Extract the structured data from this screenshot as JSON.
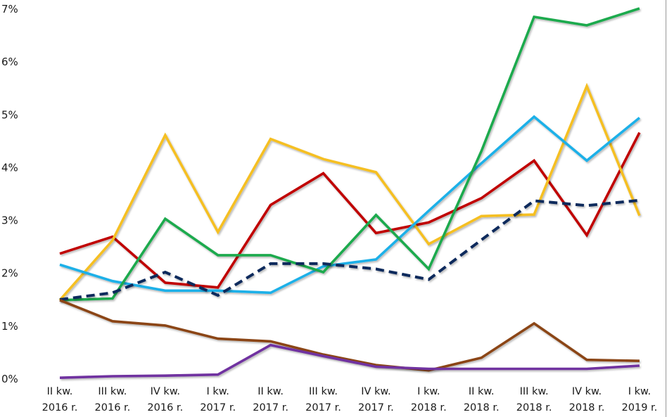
{
  "chart_data": {
    "type": "line",
    "title": "",
    "xlabel": "",
    "ylabel": "",
    "ylim": [
      0,
      7
    ],
    "grid": false,
    "legend": "none",
    "y_ticks": [
      "0%",
      "1%",
      "2%",
      "3%",
      "4%",
      "5%",
      "6%",
      "7%"
    ],
    "categories": [
      [
        "II kw.",
        "2016 r."
      ],
      [
        "III kw.",
        "2016 r."
      ],
      [
        "IV kw.",
        "2016 r."
      ],
      [
        "I kw.",
        "2017 r."
      ],
      [
        "II kw.",
        "2017 r."
      ],
      [
        "III kw.",
        "2017 r."
      ],
      [
        "IV kw.",
        "2017 r."
      ],
      [
        "I kw.",
        "2018 r."
      ],
      [
        "II kw.",
        "2018 r."
      ],
      [
        "III kw.",
        "2018 r."
      ],
      [
        "IV kw.",
        "2018 r."
      ],
      [
        "I kw.",
        "2019 r."
      ]
    ],
    "series": [
      {
        "name": "series-red",
        "color": "#c00000",
        "dashed": false,
        "values": [
          2.36,
          2.68,
          1.81,
          1.72,
          3.28,
          3.88,
          2.75,
          2.95,
          3.41,
          4.12,
          2.71,
          4.65
        ]
      },
      {
        "name": "series-yellow",
        "color": "#f5bf20",
        "dashed": false,
        "values": [
          1.48,
          2.61,
          4.6,
          2.77,
          4.53,
          4.15,
          3.9,
          2.54,
          3.07,
          3.1,
          5.53,
          3.08
        ]
      },
      {
        "name": "series-blue",
        "color": "#1fb0e8",
        "dashed": false,
        "values": [
          2.15,
          1.84,
          1.66,
          1.66,
          1.62,
          2.12,
          2.25,
          3.17,
          4.07,
          4.95,
          4.12,
          4.93
        ]
      },
      {
        "name": "series-green",
        "color": "#1faa4e",
        "dashed": false,
        "values": [
          1.48,
          1.51,
          3.02,
          2.33,
          2.33,
          2.01,
          3.09,
          2.07,
          4.3,
          6.84,
          6.68,
          7.0
        ]
      },
      {
        "name": "series-navy-dashed",
        "color": "#0f2a5c",
        "dashed": true,
        "values": [
          1.49,
          1.62,
          2.01,
          1.57,
          2.17,
          2.17,
          2.07,
          1.87,
          2.62,
          3.36,
          3.27,
          3.37
        ]
      },
      {
        "name": "series-brown",
        "color": "#8b4513",
        "dashed": false,
        "values": [
          1.48,
          1.08,
          1.0,
          0.75,
          0.7,
          0.45,
          0.25,
          0.15,
          0.39,
          1.04,
          0.35,
          0.33
        ]
      },
      {
        "name": "series-purple",
        "color": "#7030a0",
        "dashed": false,
        "values": [
          0.01,
          0.04,
          0.05,
          0.07,
          0.63,
          0.42,
          0.22,
          0.18,
          0.18,
          0.18,
          0.18,
          0.24
        ]
      }
    ]
  }
}
